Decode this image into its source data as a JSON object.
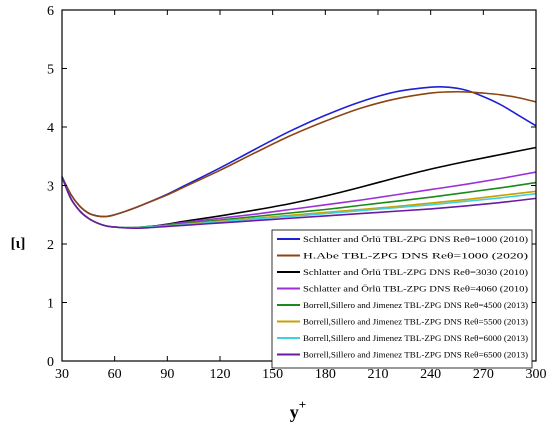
{
  "chart_data": {
    "type": "line",
    "title": "",
    "xlabel": "y",
    "xlabel_sup": "+",
    "ylabel": "[ι]",
    "xlim": [
      30,
      300
    ],
    "ylim": [
      0,
      6
    ],
    "xticks": [
      30,
      60,
      90,
      120,
      150,
      180,
      210,
      240,
      270,
      300
    ],
    "yticks": [
      0,
      1,
      2,
      3,
      4,
      5,
      6
    ],
    "grid": false,
    "legend_position": "bottom-right",
    "series": [
      {
        "name": "Schlatter and Örlü TBL-ZPG DNS Reθ=1000 (2010)",
        "color": "#1f1fd6",
        "x": [
          30,
          35,
          40,
          45,
          50,
          55,
          60,
          70,
          80,
          90,
          100,
          120,
          140,
          160,
          180,
          200,
          220,
          240,
          250,
          260,
          270,
          280,
          290,
          300
        ],
        "y": [
          3.15,
          2.85,
          2.65,
          2.53,
          2.48,
          2.47,
          2.5,
          2.6,
          2.72,
          2.85,
          3.0,
          3.3,
          3.62,
          3.93,
          4.2,
          4.43,
          4.6,
          4.68,
          4.68,
          4.63,
          4.52,
          4.38,
          4.2,
          4.02
        ]
      },
      {
        "name": "H.Abe TBL-ZPG DNS Reθ=1000 (2020)",
        "color": "#8b4513",
        "x": [
          30,
          35,
          40,
          45,
          50,
          55,
          60,
          70,
          80,
          90,
          100,
          120,
          140,
          160,
          180,
          200,
          220,
          240,
          250,
          260,
          270,
          280,
          290,
          300
        ],
        "y": [
          3.15,
          2.85,
          2.65,
          2.53,
          2.48,
          2.47,
          2.5,
          2.6,
          2.72,
          2.84,
          2.98,
          3.26,
          3.56,
          3.85,
          4.1,
          4.32,
          4.48,
          4.58,
          4.6,
          4.6,
          4.58,
          4.55,
          4.5,
          4.43
        ]
      },
      {
        "name": "Schlatter and Örlü TBL-ZPG DNS Reθ=3030 (2010)",
        "color": "#000000",
        "x": [
          30,
          35,
          40,
          45,
          50,
          55,
          60,
          70,
          80,
          90,
          100,
          120,
          140,
          160,
          180,
          200,
          220,
          240,
          260,
          280,
          300
        ],
        "y": [
          3.15,
          2.78,
          2.57,
          2.44,
          2.36,
          2.31,
          2.29,
          2.28,
          2.3,
          2.34,
          2.39,
          2.48,
          2.58,
          2.69,
          2.82,
          2.97,
          3.13,
          3.28,
          3.41,
          3.53,
          3.65
        ]
      },
      {
        "name": "Schlatter and Örlü TBL-ZPG DNS Reθ=4060 (2010)",
        "color": "#9b30d9",
        "x": [
          30,
          35,
          40,
          45,
          50,
          55,
          60,
          70,
          80,
          90,
          100,
          120,
          140,
          160,
          180,
          200,
          220,
          240,
          260,
          280,
          300
        ],
        "y": [
          3.15,
          2.78,
          2.57,
          2.44,
          2.36,
          2.31,
          2.29,
          2.28,
          2.3,
          2.33,
          2.37,
          2.44,
          2.51,
          2.59,
          2.67,
          2.75,
          2.84,
          2.93,
          3.02,
          3.12,
          3.23
        ]
      },
      {
        "name": "Borrell,Sillero and Jimenez TBL-ZPG DNS Reθ=4500 (2013)",
        "color": "#1a8a1a",
        "x": [
          30,
          35,
          40,
          45,
          50,
          55,
          60,
          70,
          80,
          90,
          100,
          120,
          140,
          160,
          180,
          200,
          220,
          240,
          260,
          280,
          300
        ],
        "y": [
          3.15,
          2.78,
          2.57,
          2.44,
          2.36,
          2.31,
          2.29,
          2.28,
          2.3,
          2.32,
          2.35,
          2.41,
          2.47,
          2.53,
          2.59,
          2.66,
          2.73,
          2.8,
          2.88,
          2.96,
          3.05
        ]
      },
      {
        "name": "Borrell,Sillero and Jimenez TBL-ZPG DNS Reθ=5500 (2013)",
        "color": "#c8a000",
        "x": [
          30,
          35,
          40,
          45,
          50,
          55,
          60,
          70,
          80,
          90,
          100,
          120,
          140,
          160,
          180,
          200,
          220,
          240,
          260,
          280,
          300
        ],
        "y": [
          3.15,
          2.78,
          2.57,
          2.44,
          2.36,
          2.31,
          2.29,
          2.28,
          2.29,
          2.31,
          2.34,
          2.39,
          2.44,
          2.49,
          2.54,
          2.59,
          2.64,
          2.7,
          2.76,
          2.83,
          2.9
        ]
      },
      {
        "name": "Borrell,Sillero and Jimenez TBL-ZPG DNS Reθ=6000 (2013)",
        "color": "#40d0e0",
        "x": [
          30,
          35,
          40,
          45,
          50,
          55,
          60,
          70,
          80,
          90,
          100,
          120,
          140,
          160,
          180,
          200,
          220,
          240,
          260,
          280,
          300
        ],
        "y": [
          3.15,
          2.78,
          2.57,
          2.44,
          2.36,
          2.31,
          2.29,
          2.28,
          2.29,
          2.31,
          2.33,
          2.38,
          2.43,
          2.47,
          2.52,
          2.57,
          2.62,
          2.67,
          2.73,
          2.79,
          2.86
        ]
      },
      {
        "name": "Borrell,Sillero and Jimenez TBL-ZPG DNS Reθ=6500 (2013)",
        "color": "#6a1aa0",
        "x": [
          30,
          35,
          40,
          45,
          50,
          55,
          60,
          70,
          80,
          90,
          100,
          120,
          140,
          160,
          180,
          200,
          220,
          240,
          260,
          280,
          300
        ],
        "y": [
          3.15,
          2.78,
          2.57,
          2.44,
          2.36,
          2.31,
          2.29,
          2.27,
          2.28,
          2.3,
          2.32,
          2.36,
          2.4,
          2.44,
          2.48,
          2.52,
          2.56,
          2.6,
          2.65,
          2.71,
          2.78
        ]
      }
    ]
  }
}
